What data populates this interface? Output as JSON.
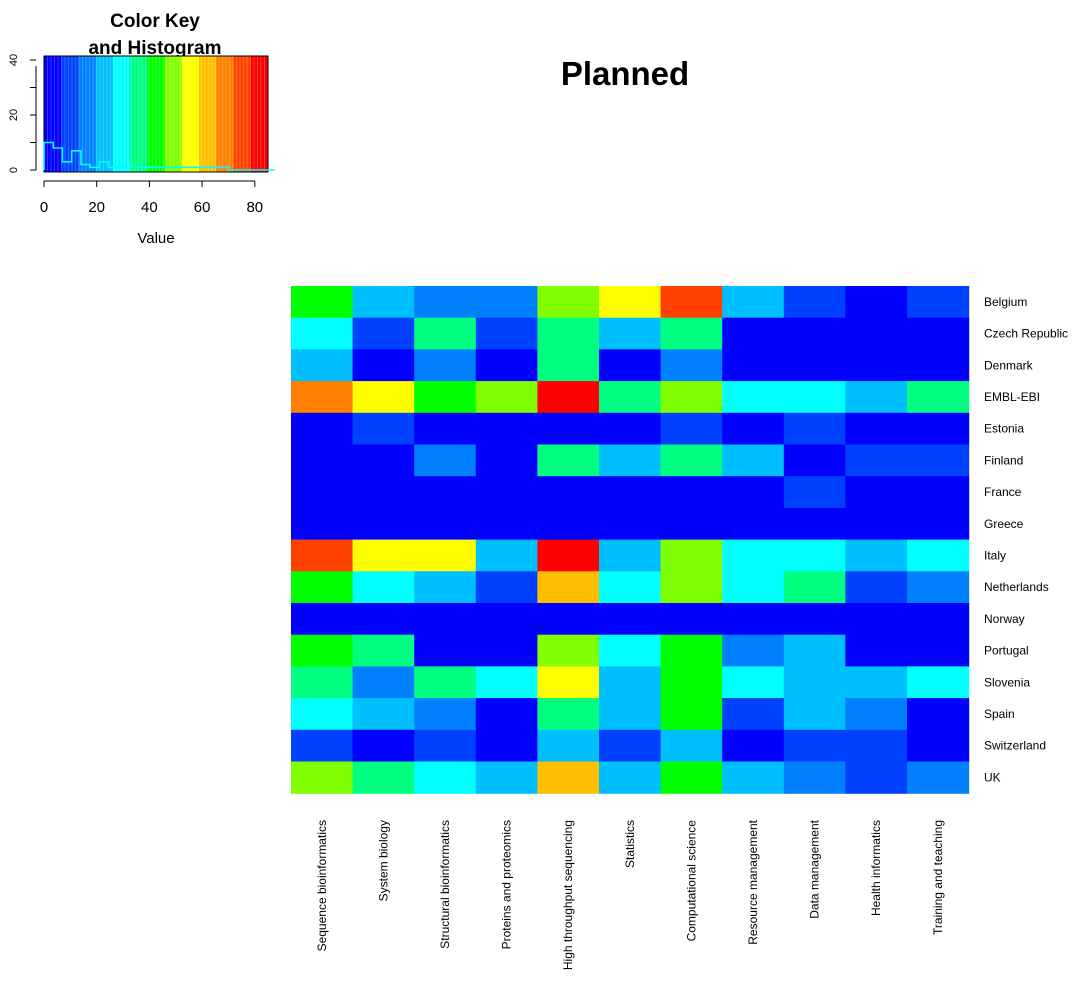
{
  "chart_data": {
    "type": "heatmap",
    "title": "Planned",
    "rows": [
      "Belgium",
      "Czech Republic",
      "Denmark",
      "EMBL-EBI",
      "Estonia",
      "Finland",
      "France",
      "Greece",
      "Italy",
      "Netherlands",
      "Norway",
      "Portugal",
      "Slovenia",
      "Spain",
      "Switzerland",
      "UK"
    ],
    "columns": [
      "Sequence bioinformatics",
      "System biology",
      "Structural bioinformatics",
      "Proteins and proteomics",
      "High throughput sequencing",
      "Statistics",
      "Computational science",
      "Resource management",
      "Data management",
      "Health informatics",
      "Training and teaching"
    ],
    "values": [
      [
        40,
        23,
        18,
        14,
        50,
        57,
        74,
        23,
        8,
        3,
        8
      ],
      [
        27,
        12,
        34,
        7,
        36,
        20,
        33,
        4,
        5,
        5,
        5
      ],
      [
        20,
        2,
        15,
        2,
        34,
        1,
        15,
        2,
        2,
        2,
        2
      ],
      [
        70,
        57,
        45,
        48,
        85,
        38,
        50,
        30,
        28,
        20,
        35
      ],
      [
        4,
        10,
        2,
        2,
        6,
        6,
        7,
        3,
        8,
        1,
        4
      ],
      [
        6,
        1,
        18,
        1,
        37,
        25,
        36,
        26,
        4,
        7,
        7
      ],
      [
        0,
        0,
        0,
        0,
        0,
        0,
        0,
        0,
        10,
        0,
        0
      ],
      [
        0,
        0,
        0,
        0,
        0,
        0,
        0,
        0,
        0,
        0,
        0
      ],
      [
        74,
        53,
        54,
        24,
        83,
        26,
        49,
        28,
        32,
        24,
        30
      ],
      [
        42,
        29,
        23,
        10,
        60,
        28,
        51,
        31,
        38,
        11,
        14
      ],
      [
        5,
        1,
        1,
        1,
        4,
        1,
        1,
        5,
        1,
        1,
        1
      ],
      [
        44,
        36,
        3,
        2,
        48,
        30,
        42,
        16,
        21,
        1,
        1
      ],
      [
        34,
        19,
        33,
        28,
        55,
        23,
        45,
        30,
        22,
        25,
        31
      ],
      [
        29,
        26,
        18,
        2,
        38,
        26,
        40,
        10,
        22,
        16,
        1
      ],
      [
        10,
        0,
        8,
        4,
        20,
        8,
        24,
        4,
        10,
        9,
        4
      ],
      [
        49,
        36,
        30,
        20,
        62,
        25,
        43,
        24,
        16,
        10,
        18
      ]
    ],
    "color_key": {
      "title_line1": "Color Key",
      "title_line2": "and Histogram",
      "xlabel": "Value",
      "xlim": [
        0,
        85
      ],
      "x_ticks": [
        0,
        20,
        40,
        60,
        80
      ],
      "hist_y_ticks": [
        "0",
        "20",
        "40"
      ],
      "hist_y_max": 40,
      "colormap": [
        "#0000ff",
        "#0040ff",
        "#0080ff",
        "#00bfff",
        "#00ffff",
        "#00ff80",
        "#00ff00",
        "#80ff00",
        "#ffff00",
        "#ffbf00",
        "#ff8000",
        "#ff4000",
        "#ff0000"
      ]
    },
    "hist_line_color": "#00ffff",
    "hist_counts": [
      10,
      8,
      3,
      7,
      2,
      1,
      3,
      1,
      1,
      1,
      1,
      1,
      1,
      1,
      1,
      1,
      1,
      1,
      1,
      1,
      0,
      0,
      0,
      0,
      0
    ]
  }
}
